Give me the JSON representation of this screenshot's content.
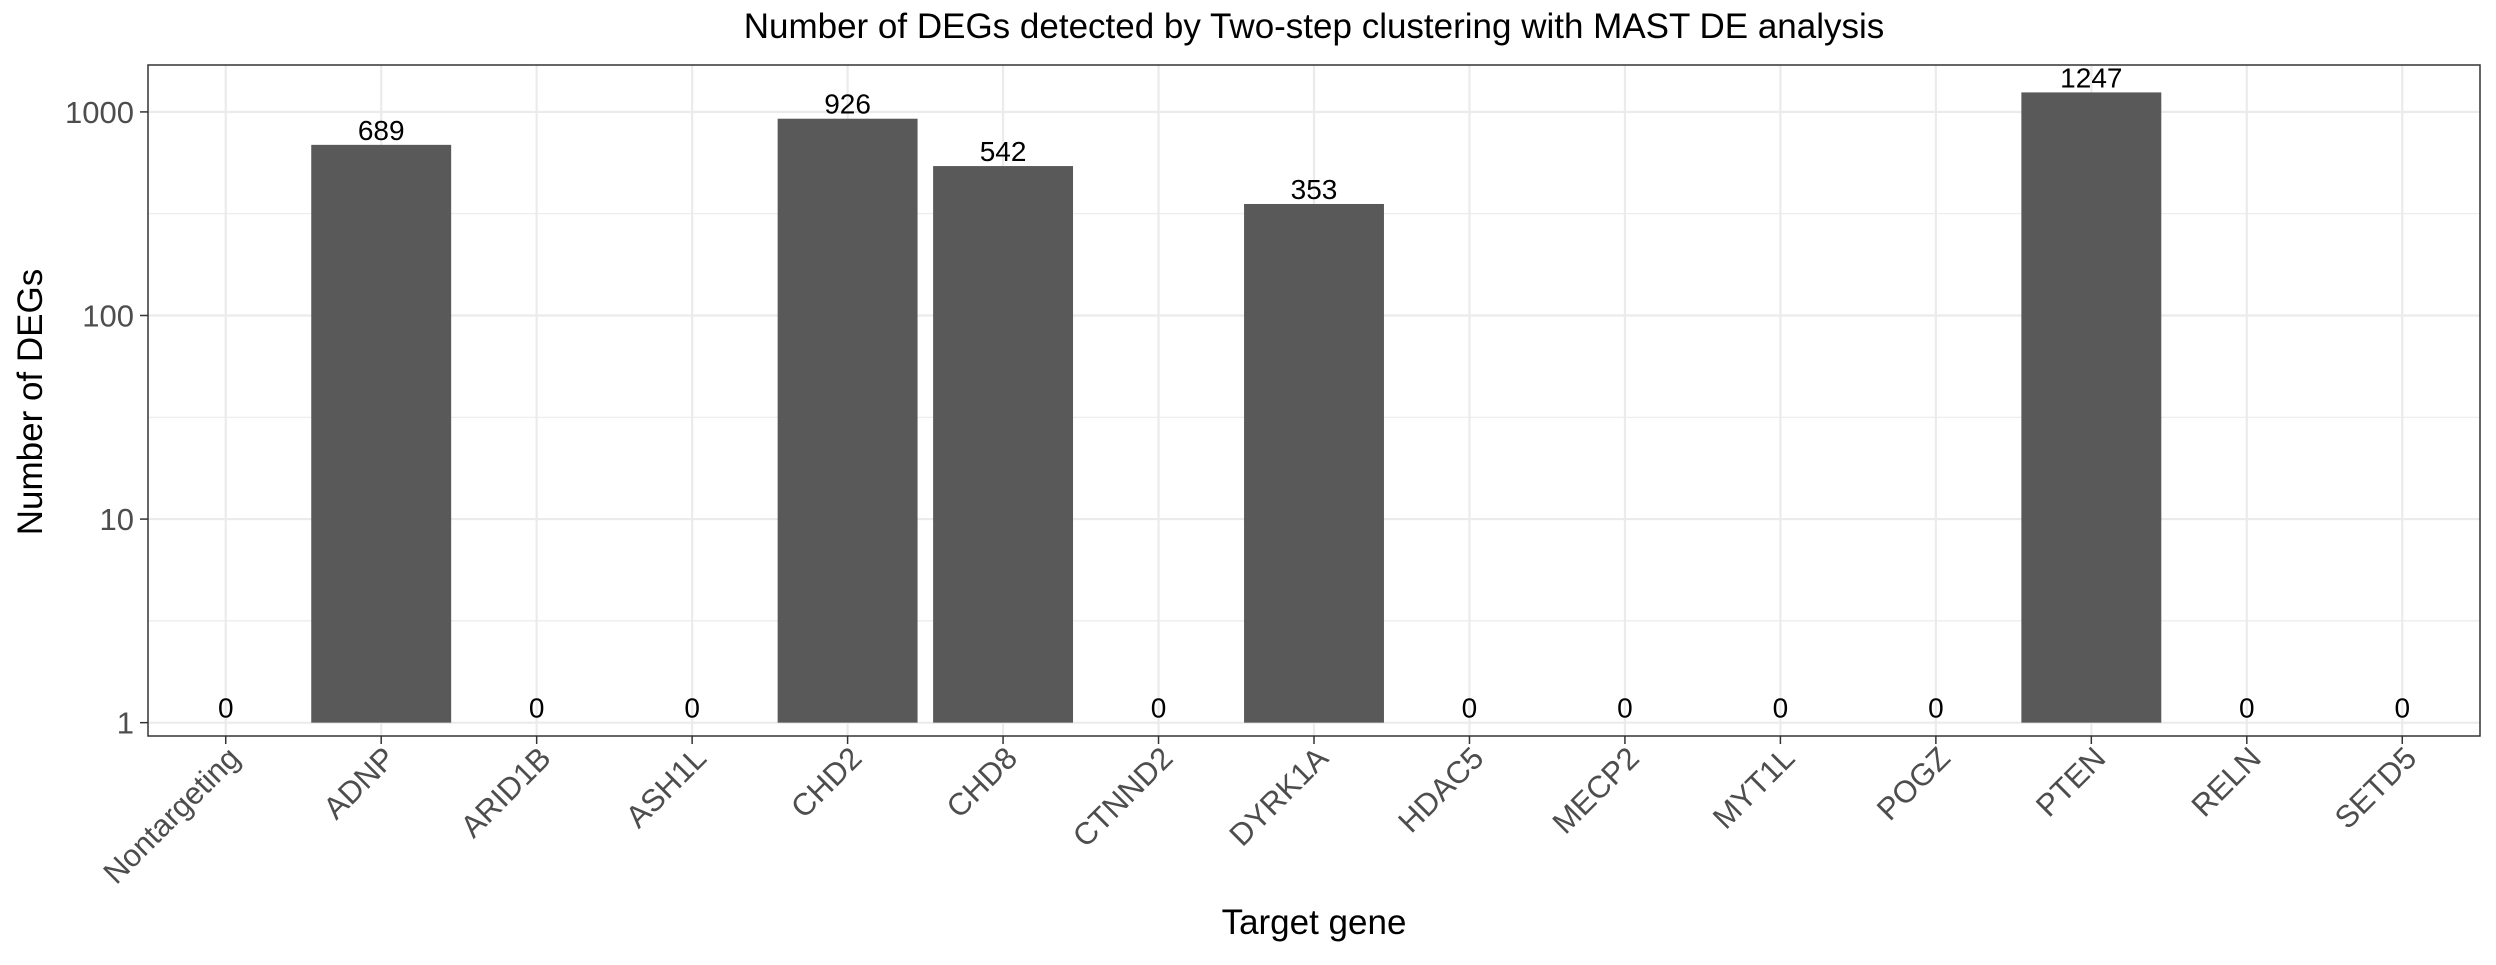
{
  "chart_data": {
    "type": "bar",
    "title": "Number of DEGs detected by Two-step clustering with MAST DE analysis",
    "xlabel": "Target gene",
    "ylabel": "Number of DEGs",
    "yscale": "log10",
    "ylim": [
      0.86,
      1700
    ],
    "yticks": [
      1,
      10,
      100,
      1000
    ],
    "ytick_labels": [
      "1",
      "10",
      "100",
      "1000"
    ],
    "categories": [
      "Nontargeting",
      "ADNP",
      "ARID1B",
      "ASH1L",
      "CHD2",
      "CHD8",
      "CTNND2",
      "DYRK1A",
      "HDAC5",
      "MECP2",
      "MYT1L",
      "POGZ",
      "PTEN",
      "RELN",
      "SETD5"
    ],
    "values": [
      0,
      689,
      0,
      0,
      926,
      542,
      0,
      353,
      0,
      0,
      0,
      0,
      1247,
      0,
      0
    ],
    "data_labels": [
      "0",
      "689",
      "0",
      "0",
      "926",
      "542",
      "0",
      "353",
      "0",
      "0",
      "0",
      "0",
      "1247",
      "0",
      "0"
    ],
    "grid": true,
    "colors": {
      "bar": "#595959",
      "grid": "#ebebeb",
      "panel_border": "#333333",
      "text": "#000000",
      "axis_text": "#4d4d4d"
    }
  }
}
